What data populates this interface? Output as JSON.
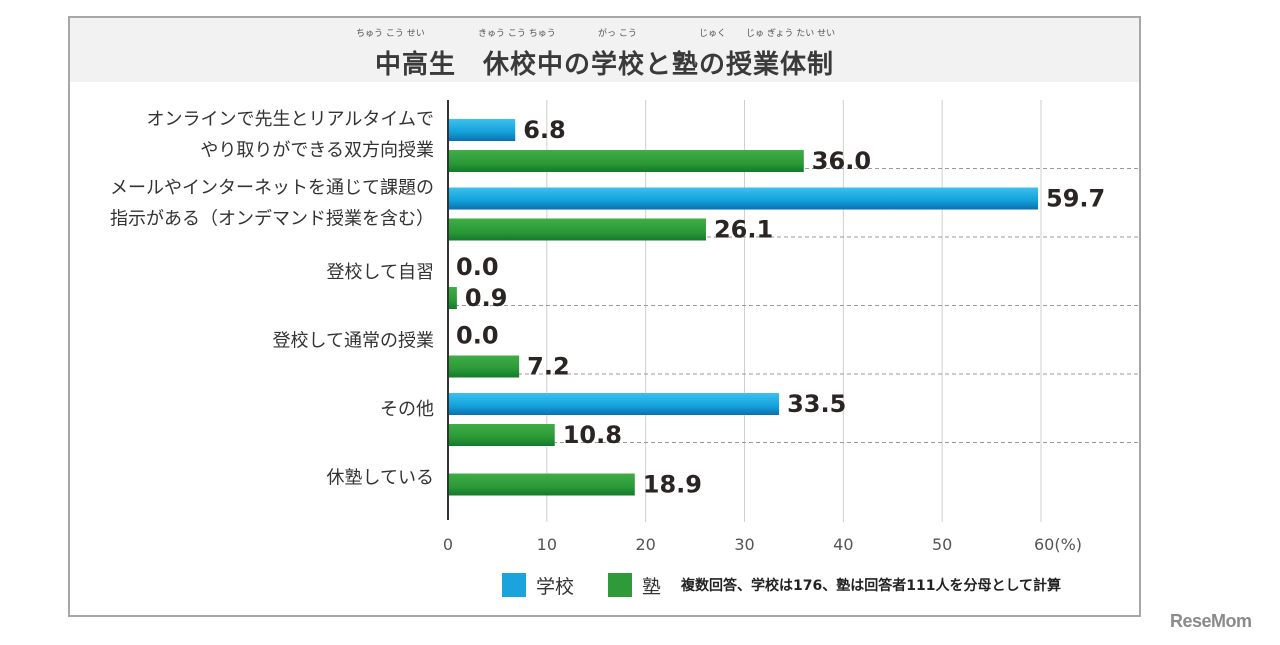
{
  "header": {
    "title": "中高生　休校中の学校と塾の授業体制",
    "ruby": [
      "ちゅう こう せい",
      "きゅう こう ちゅう",
      "がっ  こう",
      "じゅく",
      "じゅ ぎょう たい せい"
    ]
  },
  "legend": {
    "items": [
      {
        "label": "学校",
        "color": "#1aa3dc"
      },
      {
        "label": "塾",
        "color": "#2e9a3a"
      }
    ],
    "note": "複数回答、学校は176、塾は回答者111人を分母として計算"
  },
  "logo": "ReseMom",
  "chart_data": {
    "type": "bar",
    "orientation": "horizontal",
    "title": "中高生　休校中の学校と塾の授業体制",
    "categories": [
      [
        "オンラインで先生とリアルタイムで",
        "やり取りができる双方向授業"
      ],
      [
        "メールやインターネットを通じて課題の",
        "指示がある（オンデマンド授業を含む）"
      ],
      [
        "登校して自習"
      ],
      [
        "登校して通常の授業"
      ],
      [
        "その他"
      ],
      [
        "休塾している"
      ]
    ],
    "series": [
      {
        "name": "学校",
        "values": [
          6.8,
          59.7,
          0.0,
          0.0,
          33.5,
          null
        ],
        "labels": [
          "6.8",
          "59.7",
          "0.0",
          "0.0",
          "33.5",
          null
        ]
      },
      {
        "name": "塾",
        "values": [
          36.0,
          26.1,
          0.9,
          7.2,
          10.8,
          18.9
        ],
        "labels": [
          "36.0",
          "26.1",
          "0.9",
          "7.2",
          "10.8",
          "18.9"
        ]
      }
    ],
    "xlim": [
      0,
      60
    ],
    "xticks": [
      "0",
      "10",
      "20",
      "30",
      "40",
      "50",
      "60(%)"
    ],
    "xlabel": "",
    "ylabel": "",
    "grid": true,
    "legend_position": "bottom"
  }
}
